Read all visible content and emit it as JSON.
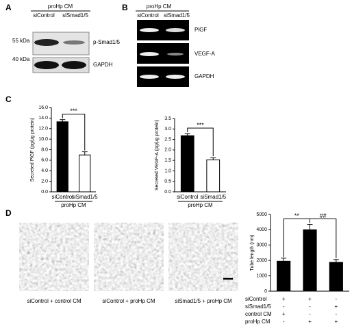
{
  "panel_a": {
    "label": "A",
    "header": "proHp CM",
    "lanes": [
      "siControl",
      "siSmad1/5"
    ],
    "markers": [
      "55 kDa",
      "40 kDa"
    ],
    "rows": [
      "p-Smad1/5",
      "GAPDH"
    ]
  },
  "panel_b": {
    "label": "B",
    "header": "proHp CM",
    "lanes": [
      "siControl",
      "siSmad1/5"
    ],
    "rows": [
      "PlGF",
      "VEGF-A",
      "GAPDH"
    ]
  },
  "panel_c": {
    "label": "C"
  },
  "panel_d": {
    "label": "D",
    "captions": [
      "siControl + control CM",
      "siControl + proHp CM",
      "siSmad1/5 + proHp CM"
    ]
  },
  "chart_data": [
    {
      "type": "bar",
      "ylabel": "Secreted PlGF (pg/μg protein)",
      "categories": [
        "siControl",
        "siSmad1/5"
      ],
      "group_label": "proHp CM",
      "values": [
        13.3,
        7.0
      ],
      "errors": [
        0.4,
        0.6
      ],
      "colors": [
        "#000000",
        "#ffffff"
      ],
      "ylim": [
        0,
        16
      ],
      "yticks": [
        {
          "value": 0,
          "label": "0.0"
        },
        {
          "value": 2,
          "label": "2.0"
        },
        {
          "value": 4,
          "label": "4.0"
        },
        {
          "value": 6,
          "label": "6.0"
        },
        {
          "value": 8,
          "label": "8.0"
        },
        {
          "value": 10,
          "label": "10.0"
        },
        {
          "value": 12,
          "label": "12.0"
        },
        {
          "value": 14,
          "label": "14.0"
        },
        {
          "value": 16,
          "label": "16.0"
        }
      ],
      "annotations": [
        "***"
      ]
    },
    {
      "type": "bar",
      "ylabel": "Secreted VEGF-A (pg/μg protein)",
      "categories": [
        "siControl",
        "siSmad1/5"
      ],
      "group_label": "proHp CM",
      "values": [
        2.68,
        1.53
      ],
      "errors": [
        0.1,
        0.1
      ],
      "colors": [
        "#000000",
        "#ffffff"
      ],
      "ylim": [
        0,
        3.5
      ],
      "yticks": [
        {
          "value": 0,
          "label": "0.0"
        },
        {
          "value": 0.5,
          "label": "0.5"
        },
        {
          "value": 1,
          "label": "1.0"
        },
        {
          "value": 1.5,
          "label": "1.5"
        },
        {
          "value": 2,
          "label": "2.0"
        },
        {
          "value": 2.5,
          "label": "2.5"
        },
        {
          "value": 3,
          "label": "3.0"
        },
        {
          "value": 3.5,
          "label": "3.5"
        }
      ],
      "annotations": [
        "***"
      ]
    },
    {
      "type": "bar",
      "ylabel": "Tube length (nm)",
      "categories": [
        null,
        null,
        null
      ],
      "values": [
        1950,
        4000,
        1880
      ],
      "errors": [
        200,
        350,
        180
      ],
      "colors": [
        "#000000",
        "#000000",
        "#000000"
      ],
      "ylim": [
        0,
        5000
      ],
      "yticks": [
        0,
        1000,
        2000,
        3000,
        4000,
        5000
      ],
      "annotations": [
        "**",
        "##"
      ],
      "conditions": [
        {
          "label": "siControl",
          "marks": [
            "+",
            "+",
            "-"
          ]
        },
        {
          "label": "siSmad1/5",
          "marks": [
            "-",
            "-",
            "+"
          ]
        },
        {
          "label": "control CM",
          "marks": [
            "+",
            "-",
            "-"
          ]
        },
        {
          "label": "proHp CM",
          "marks": [
            "-",
            "+",
            "+"
          ]
        }
      ]
    }
  ]
}
